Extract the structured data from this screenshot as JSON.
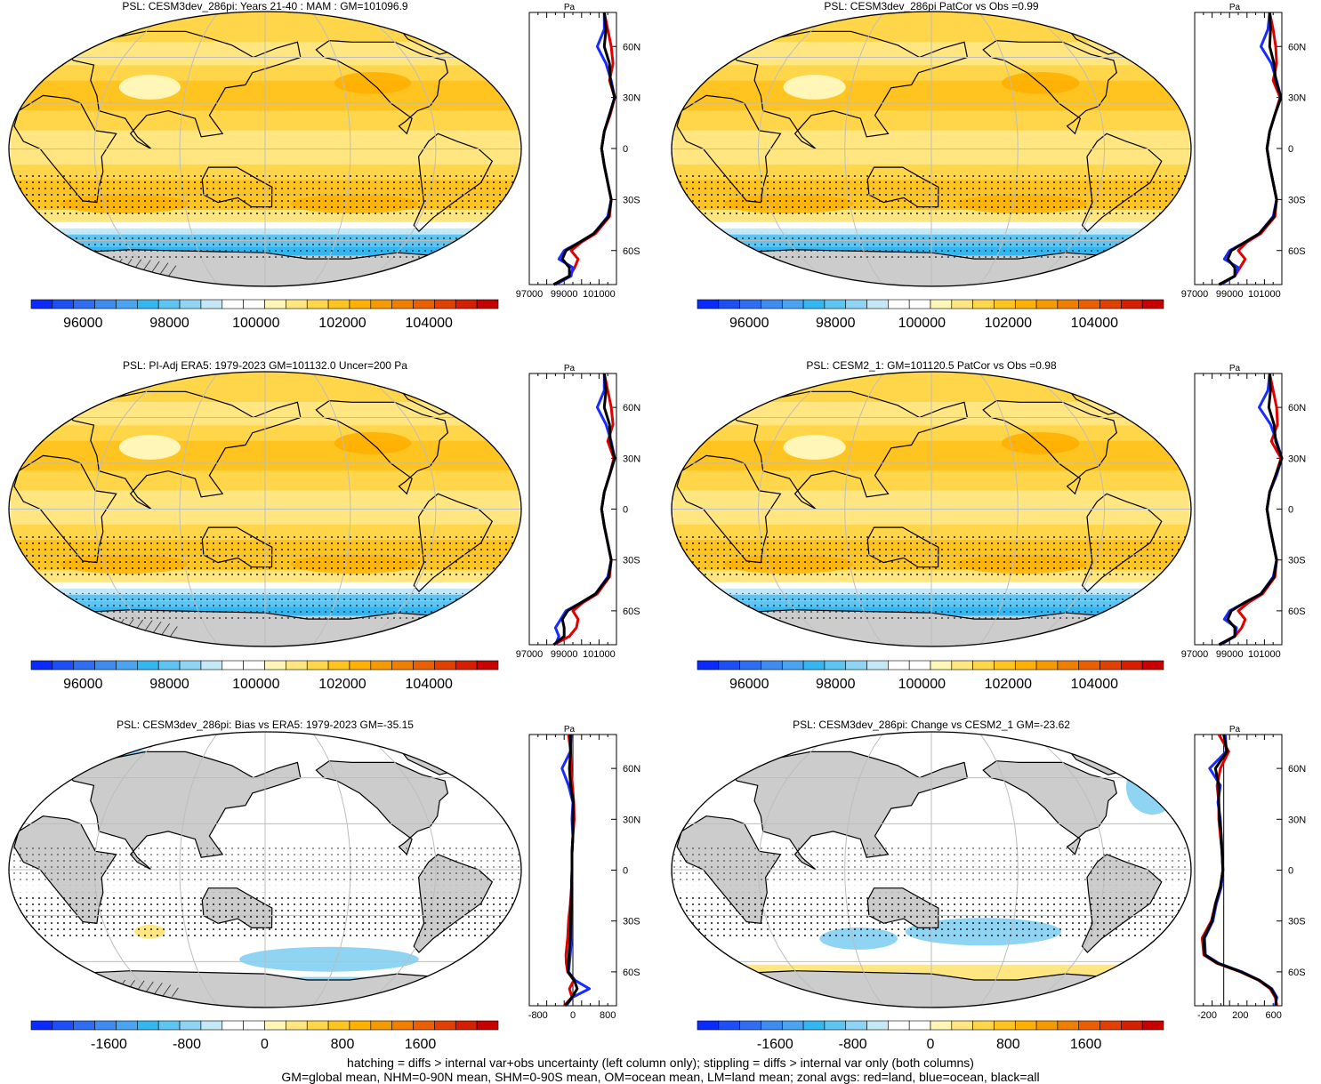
{
  "colors": {
    "scale": [
      "#0a2bff",
      "#1e4ff5",
      "#2f6ef0",
      "#3f8cf0",
      "#4aa4f2",
      "#34b6f0",
      "#5ec4f2",
      "#8fd4f2",
      "#c4e8f6",
      "#ffffff",
      "#ffffff",
      "#fff6b8",
      "#ffe680",
      "#ffd54a",
      "#ffc420",
      "#ffb000",
      "#f59b00",
      "#f07f00",
      "#ea6000",
      "#e04000",
      "#d41f00",
      "#c80000"
    ],
    "land": "#cccccc",
    "line_land": "#e00000",
    "line_ocean": "#1a2bff",
    "line_all": "#000000",
    "grid": "#bdbdbd"
  },
  "chart_data": [
    {
      "type": "heatmap",
      "title": "PSL: CESM3dev_286pi: Years 21-40 : MAM : GM=101096.9",
      "colorbar_labels": [
        "96000",
        "98000",
        "100000",
        "102000",
        "104000"
      ],
      "colorbar_range": [
        94800,
        105600
      ],
      "zonal_avg": {
        "title": "Pa",
        "xticks": [
          "97000",
          "99000",
          "101000"
        ],
        "xlim": [
          97000,
          102000
        ],
        "lat_labels": [
          "60N",
          "30N",
          "0",
          "30S",
          "60S"
        ],
        "lat": [
          80,
          70,
          60,
          50,
          40,
          30,
          20,
          10,
          0,
          -10,
          -20,
          -30,
          -40,
          -50,
          -55,
          -60,
          -65,
          -70,
          -75,
          -80
        ],
        "land": [
          101300,
          101500,
          101700,
          101800,
          101600,
          101900,
          101650,
          101300,
          101150,
          101300,
          101500,
          101700,
          101600,
          100800,
          100000,
          99400,
          99800,
          99600,
          99300,
          98400
        ],
        "ocean": [
          101300,
          101300,
          100900,
          101400,
          101700,
          101900,
          101600,
          101300,
          101150,
          101300,
          101500,
          101700,
          101500,
          100700,
          99900,
          99000,
          98700,
          99500,
          99400,
          98500
        ],
        "all": [
          101300,
          101400,
          101300,
          101600,
          101650,
          101900,
          101600,
          101300,
          101150,
          101300,
          101500,
          101700,
          101550,
          100700,
          99900,
          99100,
          98900,
          99300,
          99300,
          98400
        ]
      }
    },
    {
      "type": "heatmap",
      "title": "PSL: CESM3dev_286pi PatCor vs Obs =0.99",
      "colorbar_labels": [
        "96000",
        "98000",
        "100000",
        "102000",
        "104000"
      ],
      "colorbar_range": [
        94800,
        105600
      ],
      "zonal_avg": {
        "title": "Pa",
        "xticks": [
          "97000",
          "99000",
          "101000"
        ],
        "xlim": [
          97000,
          102000
        ],
        "lat_labels": [
          "60N",
          "30N",
          "0",
          "30S",
          "60S"
        ],
        "lat": [
          80,
          70,
          60,
          50,
          40,
          30,
          20,
          10,
          0,
          -10,
          -20,
          -30,
          -40,
          -50,
          -55,
          -60,
          -65,
          -70,
          -75,
          -80
        ],
        "land": [
          101300,
          101500,
          101650,
          101700,
          101500,
          101900,
          101600,
          101300,
          101150,
          101300,
          101500,
          101700,
          101600,
          100800,
          100000,
          99500,
          99900,
          99600,
          99300,
          98400
        ],
        "ocean": [
          101300,
          101200,
          100800,
          101400,
          101700,
          101950,
          101600,
          101300,
          101150,
          101300,
          101500,
          101700,
          101500,
          100700,
          99900,
          99000,
          98700,
          99500,
          99300,
          98500
        ],
        "all": [
          101300,
          101350,
          101300,
          101550,
          101650,
          101950,
          101600,
          101300,
          101150,
          101300,
          101500,
          101700,
          101550,
          100700,
          99900,
          99100,
          98900,
          99300,
          99300,
          98400
        ]
      }
    },
    {
      "type": "heatmap",
      "title": "PSL: PI-Adj ERA5: 1979-2023 GM=101132.0 Uncer=200 Pa",
      "colorbar_labels": [
        "96000",
        "98000",
        "100000",
        "102000",
        "104000"
      ],
      "colorbar_range": [
        94800,
        105600
      ],
      "zonal_avg": {
        "title": "Pa",
        "xticks": [
          "97000",
          "99000",
          "101000"
        ],
        "xlim": [
          97000,
          102000
        ],
        "lat_labels": [
          "60N",
          "30N",
          "0",
          "30S",
          "60S"
        ],
        "lat": [
          80,
          70,
          60,
          50,
          40,
          30,
          20,
          10,
          0,
          -10,
          -20,
          -30,
          -40,
          -50,
          -55,
          -60,
          -65,
          -70,
          -75,
          -80
        ],
        "land": [
          101300,
          101500,
          101700,
          101800,
          101500,
          101850,
          101600,
          101300,
          101150,
          101300,
          101500,
          101700,
          101600,
          100900,
          100100,
          99500,
          99800,
          99700,
          99300,
          98400
        ],
        "ocean": [
          101300,
          101300,
          100900,
          101400,
          101700,
          101900,
          101600,
          101300,
          101150,
          101300,
          101500,
          101700,
          101500,
          100800,
          100000,
          99100,
          98800,
          98500,
          98700,
          98500
        ],
        "all": [
          101300,
          101400,
          101300,
          101600,
          101650,
          101900,
          101600,
          101300,
          101150,
          101300,
          101500,
          101700,
          101550,
          100800,
          100000,
          99200,
          98900,
          99000,
          99000,
          98400
        ]
      }
    },
    {
      "type": "heatmap",
      "title": "PSL: CESM2_1: GM=101120.5 PatCor vs Obs =0.98",
      "colorbar_labels": [
        "96000",
        "98000",
        "100000",
        "102000",
        "104000"
      ],
      "colorbar_range": [
        94800,
        105600
      ],
      "zonal_avg": {
        "title": "Pa",
        "xticks": [
          "97000",
          "99000",
          "101000"
        ],
        "xlim": [
          97000,
          102000
        ],
        "lat_labels": [
          "60N",
          "30N",
          "0",
          "30S",
          "60S"
        ],
        "lat": [
          80,
          70,
          60,
          50,
          40,
          30,
          20,
          10,
          0,
          -10,
          -20,
          -30,
          -40,
          -50,
          -55,
          -60,
          -65,
          -70,
          -75,
          -80
        ],
        "land": [
          101300,
          101500,
          101700,
          101750,
          101400,
          101950,
          101650,
          101300,
          101150,
          101300,
          101500,
          101700,
          101600,
          100900,
          100100,
          99500,
          99900,
          99700,
          99300,
          98400
        ],
        "ocean": [
          101300,
          101200,
          100700,
          101350,
          101700,
          102000,
          101700,
          101300,
          101150,
          101300,
          101500,
          101700,
          101500,
          100800,
          99900,
          99000,
          98700,
          99400,
          99300,
          98500
        ],
        "all": [
          101300,
          101350,
          101250,
          101550,
          101650,
          102000,
          101650,
          101300,
          101150,
          101300,
          101500,
          101700,
          101550,
          100800,
          99900,
          99100,
          98900,
          99300,
          99300,
          98400
        ]
      }
    },
    {
      "type": "heatmap",
      "title": "PSL: CESM3dev_286pi: Bias vs ERA5: 1979-2023 GM=-35.15",
      "colorbar_labels": [
        "-1600",
        "-800",
        "0",
        "800",
        "1600"
      ],
      "colorbar_range": [
        -2400,
        2400
      ],
      "zonal_avg": {
        "title": "Pa",
        "xticks": [
          "-800",
          "0",
          "800"
        ],
        "xlim": [
          -1000,
          1000
        ],
        "lat_labels": [
          "60N",
          "30N",
          "0",
          "30S",
          "60S"
        ],
        "lat": [
          80,
          70,
          60,
          50,
          40,
          30,
          20,
          10,
          0,
          -10,
          -20,
          -30,
          -40,
          -50,
          -55,
          -60,
          -65,
          -70,
          -75,
          -80
        ],
        "land": [
          -100,
          -50,
          -40,
          -10,
          20,
          30,
          0,
          -20,
          -20,
          -30,
          -60,
          -100,
          -120,
          -160,
          -150,
          -120,
          20,
          -80,
          -20,
          -200
        ],
        "ocean": [
          -40,
          -60,
          -250,
          -100,
          0,
          -20,
          0,
          -20,
          -20,
          -30,
          -40,
          -40,
          -30,
          -60,
          -80,
          -100,
          50,
          380,
          -10,
          -150
        ],
        "all": [
          -60,
          -50,
          -80,
          -50,
          10,
          0,
          0,
          -20,
          -20,
          -30,
          -40,
          -50,
          -60,
          -90,
          -100,
          -110,
          30,
          100,
          -20,
          -180
        ]
      }
    },
    {
      "type": "heatmap",
      "title": "PSL: CESM3dev_286pi: Change vs CESM2_1 GM=-23.62",
      "colorbar_labels": [
        "-1600",
        "-800",
        "0",
        "800",
        "1600"
      ],
      "colorbar_range": [
        -2400,
        2400
      ],
      "zonal_avg": {
        "title": "Pa",
        "xticks": [
          "-200",
          "200",
          "600"
        ],
        "xlim": [
          -350,
          700
        ],
        "lat_labels": [
          "60N",
          "30N",
          "0",
          "30S",
          "60S"
        ],
        "lat": [
          80,
          70,
          60,
          50,
          40,
          30,
          20,
          10,
          0,
          -10,
          -20,
          -30,
          -40,
          -50,
          -55,
          -60,
          -65,
          -70,
          -75,
          -80
        ],
        "land": [
          -60,
          60,
          -40,
          -80,
          -60,
          -60,
          -40,
          -20,
          -10,
          -40,
          -100,
          -150,
          -260,
          -240,
          -80,
          200,
          420,
          560,
          620,
          640
        ],
        "ocean": [
          20,
          30,
          -170,
          -40,
          -70,
          -40,
          -30,
          -20,
          -10,
          -30,
          -90,
          -130,
          -230,
          -220,
          -60,
          220,
          430,
          580,
          640,
          620
        ],
        "all": [
          0,
          40,
          -100,
          -60,
          -60,
          -50,
          -30,
          -20,
          -10,
          -40,
          -100,
          -140,
          -240,
          -230,
          -70,
          210,
          430,
          570,
          630,
          630
        ]
      }
    }
  ],
  "footer": {
    "line1": "hatching = diffs > internal var+obs uncertainty (left column only); stippling = diffs > internal var only (both columns)",
    "line2": "GM=global mean, NHM=0-90N mean, SHM=0-90S mean, OM=ocean mean, LM=land mean; zonal avgs: red=land, blue=ocean, black=all"
  }
}
